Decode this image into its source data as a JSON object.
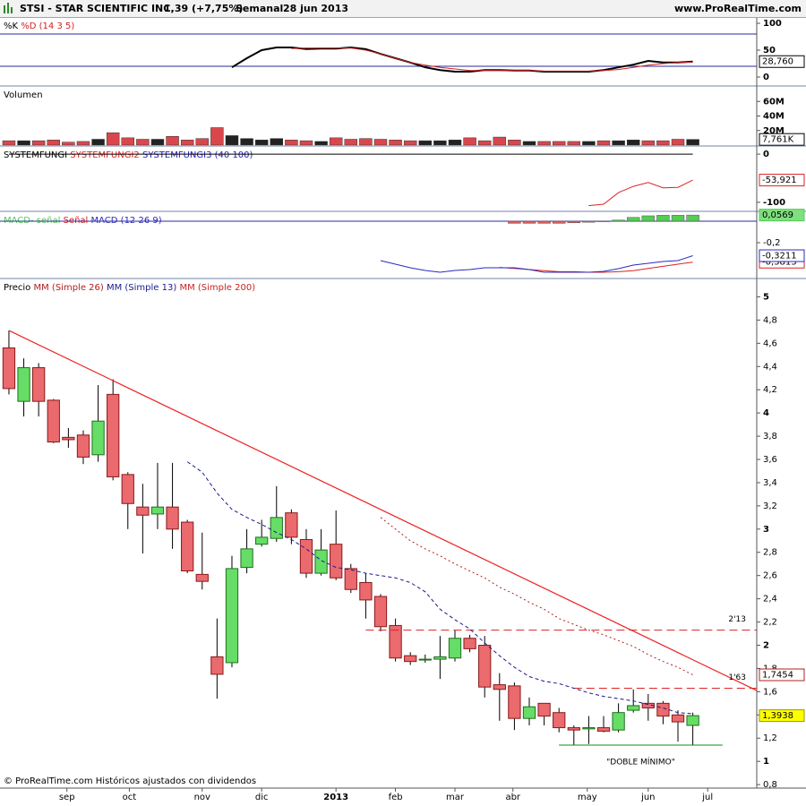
{
  "header": {
    "symbol": "STSI - STAR SCIENTIFIC INC.",
    "price": "1,39 (+7,75%)",
    "period": "Semanal",
    "date": "28 jun 2013",
    "site": "www.ProRealTime.com"
  },
  "footer": "© ProRealTime.com Históricos ajustados con dividendos",
  "chart_data": [
    {
      "type": "line",
      "params": "(14 3 5)",
      "ylim": [
        -15,
        110
      ],
      "yticks": [
        100,
        50,
        0
      ],
      "levels": [
        80,
        20
      ],
      "level_color": "#2a2a9a",
      "series": [
        {
          "name": "%K",
          "color": "#000000",
          "width": 2,
          "last_label": "28,760",
          "values": [
            null,
            null,
            null,
            null,
            null,
            null,
            null,
            null,
            null,
            null,
            null,
            null,
            null,
            null,
            null,
            18,
            35,
            50,
            55,
            55,
            52,
            53,
            53,
            55,
            52,
            43,
            35,
            27,
            18,
            13,
            10,
            10,
            13,
            13,
            12,
            12,
            10,
            10,
            10,
            10,
            13,
            18,
            23,
            30,
            27,
            27,
            28.76
          ]
        },
        {
          "name": "%D",
          "color": "#d02020",
          "width": 1,
          "values": [
            null,
            null,
            null,
            null,
            null,
            null,
            null,
            null,
            null,
            null,
            null,
            null,
            null,
            null,
            null,
            null,
            null,
            null,
            null,
            53,
            54,
            54,
            54,
            54,
            50,
            43,
            35,
            27,
            22,
            18,
            15,
            12,
            12,
            12,
            12,
            12,
            11,
            11,
            11,
            11,
            12,
            14,
            18,
            22,
            25,
            27,
            28
          ]
        }
      ]
    },
    {
      "type": "bar",
      "title": "Volumen",
      "ylim": [
        0,
        80
      ],
      "yticks": [
        {
          "value": 60,
          "label": "60M"
        },
        {
          "value": 40,
          "label": "40M"
        },
        {
          "value": 20,
          "label": "20M"
        }
      ],
      "up_color": "#222222",
      "down_color": "#d9474c",
      "last_label": "7,761K",
      "values": [
        6,
        6,
        6,
        7,
        4,
        5,
        8,
        17,
        10,
        8,
        8,
        12,
        7,
        9,
        24,
        13,
        9,
        7,
        9,
        7,
        6,
        5,
        10,
        8,
        9,
        8,
        7,
        6,
        6,
        6,
        7,
        10,
        6,
        11,
        7,
        5,
        5,
        5,
        5,
        5,
        6,
        6,
        7,
        6,
        6,
        8,
        7.761
      ]
    },
    {
      "type": "line",
      "params": "(40 100)",
      "ylim": [
        -117,
        15
      ],
      "yticks": [
        0,
        -100
      ],
      "series": [
        {
          "name": "SYSTEMFUNGI",
          "color": "#000000",
          "width": 1,
          "values": [
            0,
            0,
            0,
            0,
            0,
            0,
            0,
            0,
            0,
            0,
            0,
            0,
            0,
            0,
            0,
            0,
            0,
            0,
            0,
            0,
            0,
            0,
            0,
            0,
            0,
            0,
            0,
            0,
            0,
            0,
            0,
            0,
            0,
            0,
            0,
            0,
            0,
            0,
            0,
            0,
            0,
            0,
            0,
            0,
            0,
            0,
            0
          ]
        },
        {
          "name": "SYSTEMFUNGI2",
          "color": "#e02020",
          "width": 1,
          "last_label": "-53,921",
          "values": [
            null,
            null,
            null,
            null,
            null,
            null,
            null,
            null,
            null,
            null,
            null,
            null,
            null,
            null,
            null,
            null,
            null,
            null,
            null,
            null,
            null,
            null,
            null,
            null,
            null,
            null,
            null,
            null,
            null,
            null,
            null,
            null,
            null,
            null,
            null,
            null,
            null,
            null,
            null,
            -107,
            -104,
            -80,
            -67,
            -59,
            -70,
            -69,
            -53.921
          ]
        },
        {
          "name": "SYSTEMFUNGI3",
          "color": "#2020c0",
          "width": 1,
          "values": [
            null,
            null,
            null,
            null,
            null,
            null,
            null,
            null,
            null,
            null,
            null,
            null,
            null,
            null,
            null,
            null,
            null,
            null,
            null,
            null,
            null,
            null,
            null,
            null,
            null,
            null,
            null,
            null,
            null,
            null,
            null,
            null,
            null,
            null,
            null,
            null,
            null,
            null,
            null,
            null,
            null,
            null,
            null,
            null,
            null,
            null,
            null
          ]
        }
      ]
    },
    {
      "type": "line",
      "params": "(12 26 9)",
      "ylim": [
        -0.525,
        0.083
      ],
      "yticks": [
        {
          "value": -0.2,
          "label": "-0,2"
        }
      ],
      "levels": [
        0
      ],
      "level_color": "#2a2a9a",
      "series": [
        {
          "name": "MACD- señal",
          "type": "bar",
          "color": "#55cc55",
          "negative_color": "#e05a5a",
          "last_label": "0,0569",
          "label_fill": "#7ee07e",
          "values": [
            null,
            null,
            null,
            null,
            null,
            null,
            null,
            null,
            null,
            null,
            null,
            null,
            null,
            null,
            null,
            null,
            null,
            null,
            null,
            null,
            null,
            null,
            null,
            null,
            null,
            null,
            null,
            null,
            null,
            null,
            null,
            null,
            null,
            null,
            -0.02,
            -0.02,
            -0.02,
            -0.02,
            -0.015,
            -0.01,
            -0.005,
            0.01,
            0.035,
            0.05,
            0.055,
            0.055,
            0.0569
          ]
        },
        {
          "name": "Señal",
          "color": "#e02020",
          "width": 1,
          "last_label": "-0,3813",
          "values": [
            null,
            null,
            null,
            null,
            null,
            null,
            null,
            null,
            null,
            null,
            null,
            null,
            null,
            null,
            null,
            null,
            null,
            null,
            null,
            null,
            null,
            null,
            null,
            null,
            null,
            null,
            null,
            null,
            null,
            null,
            null,
            null,
            null,
            -0.43,
            -0.44,
            -0.45,
            -0.46,
            -0.47,
            -0.47,
            -0.475,
            -0.475,
            -0.47,
            -0.46,
            -0.44,
            -0.42,
            -0.4,
            -0.3813
          ]
        },
        {
          "name": "MACD",
          "color": "#2a2ac0",
          "width": 1,
          "last_label": "-0,3211",
          "values": [
            null,
            null,
            null,
            null,
            null,
            null,
            null,
            null,
            null,
            null,
            null,
            null,
            null,
            null,
            null,
            null,
            null,
            null,
            null,
            null,
            null,
            null,
            null,
            null,
            null,
            -0.367,
            -0.4,
            -0.433,
            -0.458,
            -0.475,
            -0.458,
            -0.45,
            -0.433,
            -0.433,
            -0.433,
            -0.45,
            -0.475,
            -0.475,
            -0.475,
            -0.475,
            -0.467,
            -0.442,
            -0.408,
            -0.392,
            -0.375,
            -0.367,
            -0.3211
          ]
        }
      ]
    },
    {
      "type": "candlestick",
      "title": "Precio",
      "ylim": [
        0.77,
        5.15
      ],
      "yticks": [
        {
          "value": 0.8,
          "label": "0,8"
        },
        1,
        {
          "value": 1.2,
          "label": "1,2"
        },
        {
          "value": 1.4,
          "label": "1,4"
        },
        {
          "value": 1.6,
          "label": "1,6"
        },
        {
          "value": 1.8,
          "label": "1,8"
        },
        2,
        {
          "value": 2.2,
          "label": "2,2"
        },
        {
          "value": 2.4,
          "label": "2,4"
        },
        {
          "value": 2.6,
          "label": "2,6"
        },
        {
          "value": 2.8,
          "label": "2,8"
        },
        3,
        {
          "value": 3.2,
          "label": "3,2"
        },
        {
          "value": 3.4,
          "label": "3,4"
        },
        {
          "value": 3.6,
          "label": "3,6"
        },
        {
          "value": 3.8,
          "label": "3,8"
        },
        4,
        {
          "value": 4.2,
          "label": "4,2"
        },
        {
          "value": 4.4,
          "label": "4,4"
        },
        {
          "value": 4.6,
          "label": "4,6"
        },
        {
          "value": 4.8,
          "label": "4,8"
        },
        5
      ],
      "xlim": [
        -0.6,
        50.3
      ],
      "xticks": [
        {
          "value": 3.9,
          "label": "sep"
        },
        {
          "value": 8.1,
          "label": "oct"
        },
        {
          "value": 13,
          "label": "nov"
        },
        {
          "value": 17,
          "label": "dic"
        },
        {
          "value": 22,
          "label": "2013"
        },
        {
          "value": 26,
          "label": "feb"
        },
        {
          "value": 30,
          "label": "mar"
        },
        {
          "value": 33.9,
          "label": "abr"
        },
        {
          "value": 38.9,
          "label": "may"
        },
        {
          "value": 43,
          "label": "jun"
        },
        {
          "value": 47,
          "label": "jul"
        }
      ],
      "up_color": "#66dd66",
      "up_border": "#1f6e1f",
      "down_color": "#ea6a6e",
      "down_border": "#8a1a1a",
      "close_label": "1,3938",
      "close_label_fill": "#ffff00",
      "open": [
        4.56,
        4.1,
        4.39,
        4.11,
        3.79,
        3.81,
        3.64,
        4.16,
        3.47,
        3.19,
        3.13,
        3.19,
        3.06,
        2.61,
        1.9,
        1.85,
        2.67,
        2.87,
        2.92,
        3.14,
        2.91,
        2.62,
        2.87,
        2.66,
        2.54,
        2.42,
        2.17,
        1.91,
        1.88,
        1.88,
        1.89,
        2.06,
        2.0,
        1.66,
        1.65,
        1.37,
        1.5,
        1.42,
        1.29,
        1.28,
        1.29,
        1.27,
        1.44,
        1.5,
        1.5,
        1.4,
        1.31
      ],
      "high": [
        4.71,
        4.47,
        4.43,
        4.12,
        3.87,
        3.85,
        4.24,
        4.29,
        3.49,
        3.39,
        3.57,
        3.57,
        3.08,
        2.97,
        2.23,
        2.77,
        3.0,
        3.08,
        3.37,
        3.17,
        3.0,
        3.0,
        3.16,
        2.7,
        2.62,
        2.44,
        2.23,
        1.94,
        1.92,
        2.08,
        2.13,
        2.09,
        2.08,
        1.76,
        1.68,
        1.55,
        1.5,
        1.46,
        1.31,
        1.39,
        1.39,
        1.5,
        1.62,
        1.58,
        1.52,
        1.44,
        1.42
      ],
      "low": [
        4.16,
        3.97,
        3.97,
        3.74,
        3.7,
        3.56,
        3.58,
        3.42,
        3.0,
        2.79,
        3.0,
        2.83,
        2.62,
        2.48,
        1.54,
        1.81,
        2.62,
        2.85,
        2.89,
        2.87,
        2.58,
        2.6,
        2.56,
        2.45,
        2.23,
        2.12,
        1.86,
        1.83,
        1.85,
        1.71,
        1.86,
        1.94,
        1.55,
        1.35,
        1.27,
        1.31,
        1.31,
        1.25,
        1.14,
        1.15,
        1.25,
        1.25,
        1.42,
        1.35,
        1.32,
        1.17,
        1.14
      ],
      "close": [
        4.21,
        4.39,
        4.1,
        3.75,
        3.77,
        3.62,
        3.93,
        3.45,
        3.22,
        3.12,
        3.19,
        3.0,
        2.64,
        2.55,
        1.75,
        2.66,
        2.83,
        2.93,
        3.1,
        2.93,
        2.62,
        2.82,
        2.58,
        2.48,
        2.39,
        2.16,
        1.89,
        1.86,
        1.88,
        1.9,
        2.06,
        1.97,
        1.64,
        1.62,
        1.37,
        1.47,
        1.39,
        1.29,
        1.27,
        1.29,
        1.26,
        1.42,
        1.48,
        1.46,
        1.39,
        1.34,
        1.3938
      ],
      "series": [
        {
          "name": "MM (Simple 26)",
          "color": "#b02020",
          "width": 1,
          "style": "dotted",
          "last_label": "1,7454",
          "values": [
            null,
            null,
            null,
            null,
            null,
            null,
            null,
            null,
            null,
            null,
            null,
            null,
            null,
            null,
            null,
            null,
            null,
            null,
            null,
            null,
            null,
            null,
            null,
            null,
            null,
            3.1,
            3.0,
            2.9,
            2.83,
            2.77,
            2.7,
            2.64,
            2.58,
            2.5,
            2.44,
            2.37,
            2.31,
            2.23,
            2.18,
            2.13,
            2.09,
            2.04,
            1.99,
            1.92,
            1.86,
            1.81,
            1.7454
          ]
        },
        {
          "name": "MM (Simple 13)",
          "color": "#1a1a8c",
          "width": 1,
          "style": "dashed",
          "values": [
            null,
            null,
            null,
            null,
            null,
            null,
            null,
            null,
            null,
            null,
            null,
            null,
            3.58,
            3.49,
            3.31,
            3.17,
            3.1,
            3.04,
            2.97,
            2.91,
            2.83,
            2.73,
            2.67,
            2.65,
            2.62,
            2.6,
            2.58,
            2.54,
            2.46,
            2.31,
            2.22,
            2.14,
            2.02,
            1.91,
            1.81,
            1.73,
            1.69,
            1.67,
            1.63,
            1.59,
            1.56,
            1.54,
            1.52,
            1.49,
            1.46,
            1.42,
            1.41
          ]
        },
        {
          "name": "MM (Simple 200)",
          "color": "#cc2222",
          "width": 1,
          "values": [
            null,
            null,
            null,
            null,
            null,
            null,
            null,
            null,
            null,
            null,
            null,
            null,
            null,
            null,
            null,
            null,
            null,
            null,
            null,
            null,
            null,
            null,
            null,
            null,
            null,
            null,
            null,
            null,
            null,
            null,
            null,
            null,
            null,
            null,
            null,
            null,
            null,
            null,
            null,
            null,
            null,
            null,
            null,
            null,
            null,
            null,
            null
          ]
        }
      ],
      "trendlines": [
        {
          "color": "#ee2222",
          "from": [
            0,
            4.71
          ],
          "to": [
            50.3,
            1.61
          ]
        }
      ],
      "annotations": [
        {
          "label": "2'13",
          "value": 2.13,
          "start": 24,
          "color": "#dd2222",
          "dashed": true
        },
        {
          "label": "1'63",
          "value": 1.63,
          "start": 38,
          "color": "#dd2222",
          "dashed": true
        },
        {
          "label": "\"DOBLE MÍNIMO\"",
          "value": 1.14,
          "start": 37,
          "end": 48,
          "color": "#118811",
          "dashed": false
        }
      ]
    }
  ]
}
